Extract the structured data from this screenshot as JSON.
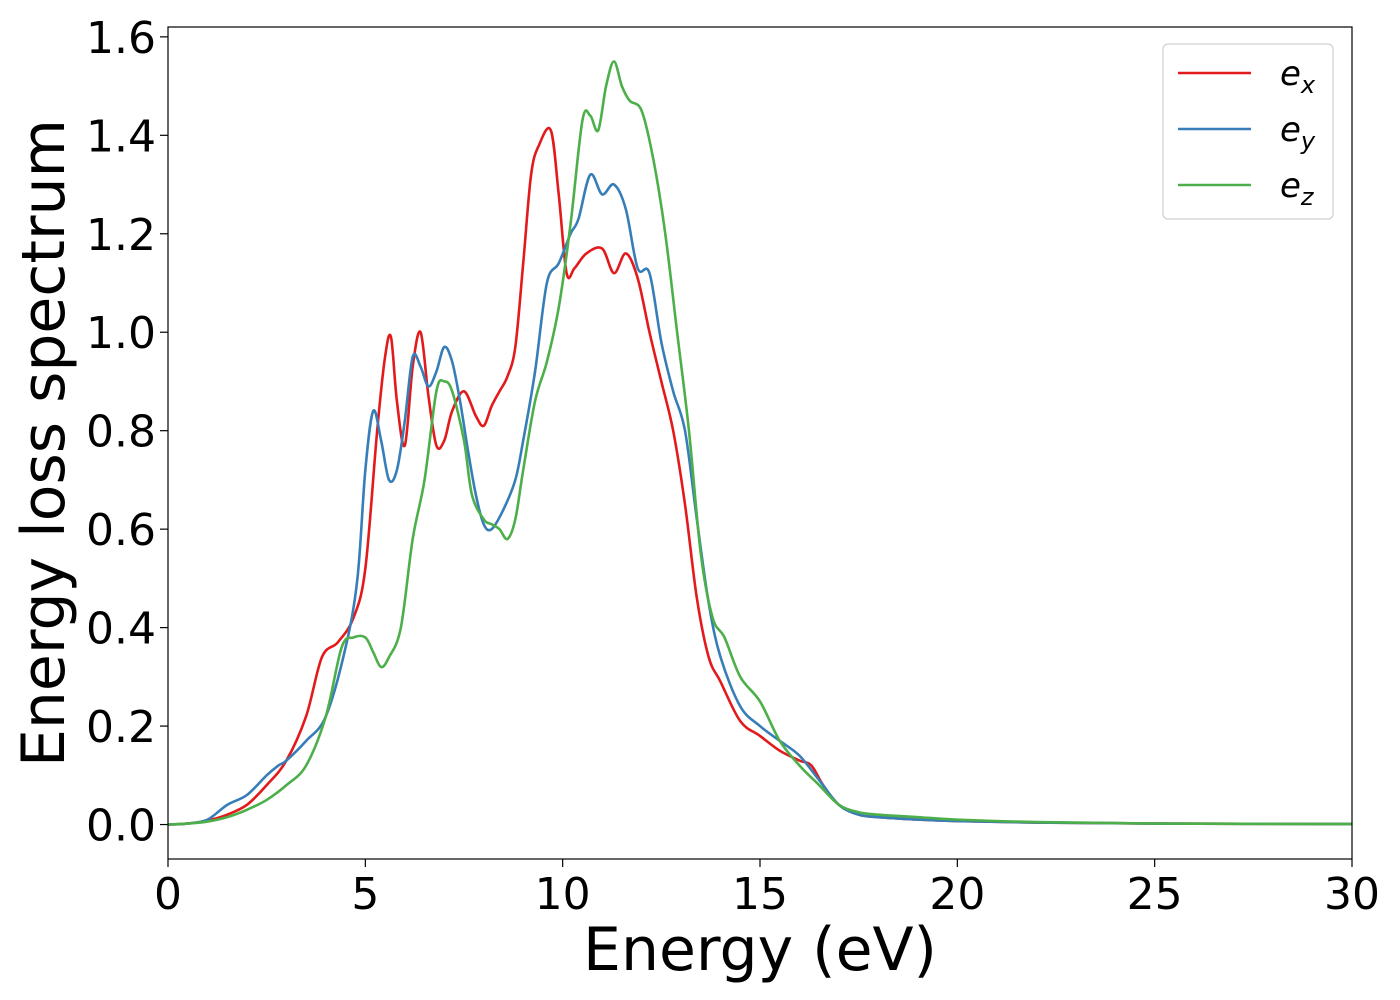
{
  "chart_data": {
    "type": "line",
    "xlabel": "Energy (eV)",
    "ylabel": "Energy loss spectrum",
    "xlim": [
      0,
      30
    ],
    "ylim": [
      -0.07,
      1.62
    ],
    "xticks": [
      0,
      5,
      10,
      15,
      20,
      25,
      30
    ],
    "xtick_labels": [
      "0",
      "5",
      "10",
      "15",
      "20",
      "25",
      "30"
    ],
    "yticks": [
      0.0,
      0.2,
      0.4,
      0.6,
      0.8,
      1.0,
      1.2,
      1.4,
      1.6
    ],
    "ytick_labels": [
      "0.0",
      "0.2",
      "0.4",
      "0.6",
      "0.8",
      "1.0",
      "1.2",
      "1.4",
      "1.6"
    ],
    "grid": false,
    "legend_position": "top-right",
    "series": [
      {
        "name": "e_x",
        "label_base": "e",
        "label_sub": "x",
        "color": "#e31a1c",
        "x": [
          0,
          0.5,
          1.0,
          1.5,
          2.0,
          2.5,
          3.0,
          3.5,
          3.9,
          4.3,
          4.7,
          5.0,
          5.3,
          5.5,
          5.65,
          5.8,
          6.0,
          6.2,
          6.4,
          6.6,
          6.8,
          7.0,
          7.2,
          7.5,
          7.8,
          8.0,
          8.2,
          8.4,
          8.6,
          8.8,
          9.0,
          9.2,
          9.4,
          9.7,
          9.9,
          10.1,
          10.3,
          10.6,
          11.0,
          11.3,
          11.6,
          11.9,
          12.2,
          12.5,
          12.8,
          13.1,
          13.4,
          13.7,
          14.0,
          14.5,
          15.0,
          15.5,
          16.0,
          16.3,
          16.6,
          17.0,
          17.5,
          18.0,
          19.0,
          20.0,
          22.0,
          25.0,
          30.0
        ],
        "values": [
          0.0,
          0.002,
          0.008,
          0.02,
          0.04,
          0.08,
          0.13,
          0.22,
          0.34,
          0.37,
          0.42,
          0.52,
          0.8,
          0.95,
          0.99,
          0.86,
          0.77,
          0.93,
          1.0,
          0.87,
          0.77,
          0.78,
          0.84,
          0.88,
          0.83,
          0.81,
          0.85,
          0.88,
          0.91,
          0.97,
          1.14,
          1.32,
          1.38,
          1.41,
          1.28,
          1.12,
          1.13,
          1.16,
          1.17,
          1.12,
          1.16,
          1.11,
          1.0,
          0.9,
          0.8,
          0.65,
          0.46,
          0.34,
          0.29,
          0.21,
          0.18,
          0.15,
          0.13,
          0.12,
          0.08,
          0.04,
          0.02,
          0.015,
          0.01,
          0.007,
          0.004,
          0.002,
          0.001
        ]
      },
      {
        "name": "e_y",
        "label_base": "e",
        "label_sub": "y",
        "color": "#377eb8",
        "x": [
          0,
          0.5,
          1.0,
          1.5,
          2.0,
          2.5,
          2.8,
          3.0,
          3.5,
          4.0,
          4.5,
          4.8,
          5.0,
          5.2,
          5.4,
          5.6,
          5.8,
          6.0,
          6.2,
          6.4,
          6.6,
          6.8,
          7.0,
          7.2,
          7.4,
          7.6,
          7.8,
          8.0,
          8.2,
          8.5,
          8.8,
          9.0,
          9.3,
          9.6,
          9.9,
          10.2,
          10.4,
          10.7,
          11.0,
          11.3,
          11.6,
          11.9,
          12.2,
          12.5,
          12.8,
          13.1,
          13.4,
          13.7,
          14.0,
          14.5,
          15.0,
          15.5,
          16.0,
          16.5,
          17.0,
          17.5,
          18.0,
          19.0,
          20.0,
          22.0,
          25.0,
          30.0
        ],
        "values": [
          0.0,
          0.002,
          0.01,
          0.04,
          0.06,
          0.1,
          0.12,
          0.13,
          0.17,
          0.22,
          0.36,
          0.5,
          0.72,
          0.84,
          0.78,
          0.7,
          0.72,
          0.82,
          0.95,
          0.93,
          0.89,
          0.92,
          0.97,
          0.94,
          0.86,
          0.76,
          0.67,
          0.61,
          0.6,
          0.64,
          0.7,
          0.78,
          0.92,
          1.1,
          1.14,
          1.2,
          1.23,
          1.32,
          1.28,
          1.3,
          1.25,
          1.13,
          1.12,
          0.98,
          0.88,
          0.8,
          0.62,
          0.45,
          0.34,
          0.24,
          0.2,
          0.17,
          0.14,
          0.09,
          0.04,
          0.02,
          0.015,
          0.01,
          0.007,
          0.004,
          0.002,
          0.001
        ]
      },
      {
        "name": "e_z",
        "label_base": "e",
        "label_sub": "z",
        "color": "#4daf4a",
        "x": [
          0,
          0.5,
          1.0,
          1.5,
          2.0,
          2.5,
          3.0,
          3.5,
          4.0,
          4.4,
          4.7,
          5.0,
          5.2,
          5.4,
          5.6,
          5.9,
          6.2,
          6.5,
          6.8,
          7.0,
          7.2,
          7.5,
          7.7,
          8.0,
          8.2,
          8.4,
          8.6,
          8.8,
          9.0,
          9.3,
          9.6,
          9.9,
          10.2,
          10.5,
          10.7,
          10.9,
          11.1,
          11.3,
          11.5,
          11.7,
          12.0,
          12.3,
          12.6,
          12.9,
          13.2,
          13.5,
          13.8,
          14.1,
          14.5,
          15.0,
          15.5,
          16.0,
          16.5,
          17.0,
          17.5,
          18.0,
          19.0,
          20.0,
          22.0,
          25.0,
          30.0
        ],
        "values": [
          0.0,
          0.002,
          0.006,
          0.015,
          0.03,
          0.05,
          0.08,
          0.12,
          0.22,
          0.36,
          0.38,
          0.38,
          0.35,
          0.32,
          0.34,
          0.4,
          0.58,
          0.7,
          0.88,
          0.9,
          0.88,
          0.78,
          0.67,
          0.62,
          0.61,
          0.6,
          0.58,
          0.62,
          0.72,
          0.86,
          0.94,
          1.05,
          1.22,
          1.43,
          1.44,
          1.41,
          1.5,
          1.55,
          1.5,
          1.47,
          1.45,
          1.35,
          1.2,
          1.0,
          0.8,
          0.55,
          0.42,
          0.38,
          0.3,
          0.25,
          0.17,
          0.12,
          0.08,
          0.04,
          0.025,
          0.02,
          0.015,
          0.01,
          0.005,
          0.002,
          0.001
        ]
      }
    ]
  }
}
